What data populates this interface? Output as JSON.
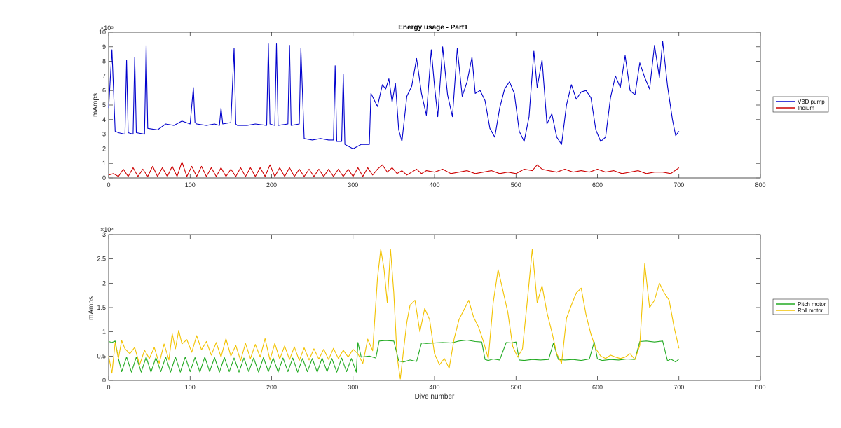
{
  "chart_data": [
    {
      "type": "line",
      "title": "Energy usage - Part1",
      "xlabel": "",
      "ylabel": "mAmps",
      "xlim": [
        0,
        800
      ],
      "ylim": [
        0,
        1000000
      ],
      "xticks": [
        "0",
        "100",
        "200",
        "300",
        "400",
        "500",
        "600",
        "700",
        "800"
      ],
      "yticks": [
        "0",
        "1",
        "2",
        "3",
        "4",
        "5",
        "6",
        "7",
        "8",
        "9",
        "10"
      ],
      "exponent_label": "×10⁵",
      "legend_position": "right",
      "grid": false,
      "series": [
        {
          "name": "VBD pump",
          "color": "#0000cc",
          "x": [
            0,
            4,
            8,
            12,
            20,
            22,
            24,
            30,
            32,
            34,
            44,
            46,
            48,
            60,
            70,
            80,
            90,
            100,
            104,
            106,
            108,
            120,
            130,
            136,
            138,
            140,
            150,
            154,
            156,
            158,
            170,
            180,
            194,
            196,
            198,
            204,
            206,
            208,
            220,
            222,
            224,
            234,
            236,
            240,
            250,
            260,
            270,
            276,
            278,
            280,
            286,
            288,
            290,
            300,
            310,
            320,
            322,
            330,
            336,
            340,
            344,
            348,
            352,
            356,
            360,
            366,
            372,
            378,
            384,
            390,
            396,
            400,
            404,
            410,
            416,
            422,
            428,
            434,
            440,
            446,
            450,
            456,
            462,
            468,
            474,
            480,
            486,
            492,
            498,
            504,
            510,
            516,
            522,
            526,
            532,
            538,
            544,
            550,
            556,
            562,
            568,
            574,
            580,
            586,
            592,
            598,
            604,
            610,
            616,
            622,
            628,
            634,
            640,
            646,
            652,
            658,
            664,
            670,
            676,
            680,
            686,
            692,
            696,
            700
          ],
          "y": [
            480000,
            880000,
            320000,
            310000,
            300000,
            810000,
            310000,
            300000,
            830000,
            310000,
            300000,
            910000,
            340000,
            330000,
            370000,
            360000,
            390000,
            370000,
            620000,
            380000,
            370000,
            360000,
            370000,
            360000,
            480000,
            370000,
            380000,
            890000,
            370000,
            360000,
            360000,
            370000,
            360000,
            920000,
            370000,
            360000,
            920000,
            360000,
            370000,
            910000,
            360000,
            370000,
            890000,
            270000,
            260000,
            270000,
            260000,
            260000,
            770000,
            250000,
            250000,
            710000,
            230000,
            200000,
            230000,
            230000,
            580000,
            490000,
            640000,
            610000,
            680000,
            520000,
            650000,
            330000,
            250000,
            560000,
            630000,
            820000,
            580000,
            430000,
            880000,
            630000,
            420000,
            900000,
            570000,
            420000,
            890000,
            560000,
            660000,
            830000,
            580000,
            600000,
            530000,
            340000,
            280000,
            480000,
            610000,
            660000,
            580000,
            320000,
            250000,
            420000,
            870000,
            620000,
            810000,
            370000,
            440000,
            280000,
            230000,
            500000,
            640000,
            540000,
            590000,
            600000,
            550000,
            330000,
            250000,
            280000,
            550000,
            700000,
            620000,
            840000,
            600000,
            570000,
            790000,
            690000,
            610000,
            910000,
            690000,
            940000,
            630000,
            400000,
            290000,
            320000
          ]
        },
        {
          "name": "Iridium",
          "color": "#cc0000",
          "x": [
            0,
            6,
            12,
            18,
            24,
            30,
            36,
            42,
            48,
            54,
            60,
            66,
            72,
            78,
            84,
            90,
            96,
            102,
            108,
            114,
            120,
            126,
            132,
            138,
            144,
            150,
            156,
            162,
            168,
            174,
            180,
            186,
            192,
            198,
            204,
            210,
            216,
            222,
            228,
            234,
            240,
            246,
            252,
            258,
            264,
            270,
            276,
            282,
            288,
            294,
            300,
            306,
            312,
            318,
            324,
            330,
            336,
            342,
            348,
            354,
            360,
            366,
            372,
            378,
            384,
            390,
            400,
            410,
            420,
            430,
            440,
            450,
            460,
            470,
            480,
            490,
            500,
            510,
            520,
            526,
            532,
            540,
            550,
            560,
            570,
            580,
            590,
            600,
            610,
            620,
            630,
            640,
            650,
            660,
            670,
            680,
            690,
            700
          ],
          "y": [
            20000,
            30000,
            10000,
            60000,
            10000,
            70000,
            10000,
            60000,
            10000,
            80000,
            10000,
            70000,
            10000,
            80000,
            10000,
            110000,
            10000,
            80000,
            10000,
            80000,
            10000,
            70000,
            10000,
            70000,
            10000,
            60000,
            10000,
            70000,
            10000,
            70000,
            10000,
            70000,
            10000,
            90000,
            10000,
            70000,
            10000,
            70000,
            10000,
            60000,
            10000,
            60000,
            10000,
            60000,
            10000,
            60000,
            10000,
            60000,
            10000,
            60000,
            10000,
            70000,
            10000,
            70000,
            20000,
            60000,
            90000,
            40000,
            70000,
            30000,
            50000,
            20000,
            40000,
            60000,
            30000,
            50000,
            40000,
            60000,
            30000,
            40000,
            50000,
            30000,
            40000,
            50000,
            30000,
            40000,
            30000,
            60000,
            50000,
            90000,
            60000,
            50000,
            40000,
            60000,
            40000,
            50000,
            40000,
            60000,
            40000,
            50000,
            30000,
            40000,
            50000,
            30000,
            40000,
            40000,
            30000,
            70000
          ]
        }
      ]
    },
    {
      "type": "line",
      "title": "",
      "xlabel": "Dive number",
      "ylabel": "mAmps",
      "xlim": [
        0,
        800
      ],
      "ylim": [
        0,
        30000
      ],
      "xticks": [
        "0",
        "100",
        "200",
        "300",
        "400",
        "500",
        "600",
        "700",
        "800"
      ],
      "yticks": [
        "0",
        "0.5",
        "1",
        "1.5",
        "2",
        "2.5",
        "3"
      ],
      "exponent_label": "×10⁴",
      "legend_position": "right",
      "grid": false,
      "series": [
        {
          "name": "Pitch motor",
          "color": "#22aa22",
          "x": [
            0,
            4,
            8,
            12,
            16,
            22,
            28,
            34,
            40,
            46,
            52,
            58,
            64,
            70,
            76,
            82,
            88,
            94,
            100,
            106,
            112,
            118,
            124,
            130,
            136,
            142,
            148,
            154,
            160,
            166,
            172,
            178,
            184,
            190,
            196,
            202,
            208,
            214,
            220,
            226,
            232,
            238,
            244,
            250,
            256,
            262,
            268,
            274,
            280,
            286,
            292,
            298,
            304,
            306,
            310,
            320,
            328,
            332,
            340,
            350,
            356,
            362,
            370,
            378,
            384,
            390,
            400,
            410,
            420,
            430,
            440,
            450,
            458,
            462,
            466,
            472,
            480,
            488,
            494,
            500,
            504,
            510,
            520,
            530,
            540,
            546,
            552,
            560,
            570,
            580,
            590,
            596,
            600,
            606,
            616,
            626,
            636,
            646,
            652,
            660,
            670,
            680,
            686,
            690,
            696,
            700
          ],
          "y": [
            8000,
            7800,
            8100,
            4500,
            1800,
            4800,
            1700,
            4800,
            1700,
            4800,
            1700,
            4700,
            1800,
            4800,
            1700,
            4800,
            1700,
            4800,
            1800,
            4700,
            1700,
            4800,
            1800,
            4700,
            1700,
            4700,
            1800,
            4600,
            1700,
            4600,
            1800,
            4600,
            1700,
            4700,
            1800,
            4600,
            1700,
            4600,
            1800,
            4600,
            1700,
            4500,
            1800,
            4500,
            1700,
            4600,
            1800,
            4500,
            1700,
            4600,
            1800,
            4500,
            1700,
            7800,
            4800,
            5000,
            4600,
            8100,
            8200,
            8100,
            4000,
            3800,
            4200,
            3900,
            7700,
            7600,
            7700,
            7800,
            7700,
            8100,
            8300,
            8000,
            7900,
            4300,
            4100,
            4400,
            4200,
            7800,
            7700,
            7900,
            4200,
            4100,
            4300,
            4200,
            4300,
            7700,
            4300,
            4200,
            4300,
            4100,
            4400,
            7900,
            4400,
            4100,
            4300,
            4200,
            4400,
            4300,
            8000,
            8100,
            7900,
            8100,
            4000,
            4400,
            3800,
            4400
          ]
        },
        {
          "name": "Roll motor",
          "color": "#f2c200",
          "x": [
            0,
            4,
            8,
            12,
            16,
            20,
            26,
            32,
            38,
            44,
            50,
            56,
            62,
            68,
            74,
            78,
            82,
            86,
            90,
            96,
            102,
            108,
            114,
            120,
            126,
            132,
            138,
            144,
            150,
            156,
            162,
            168,
            174,
            180,
            186,
            192,
            198,
            204,
            210,
            216,
            222,
            228,
            234,
            240,
            246,
            252,
            258,
            264,
            270,
            276,
            282,
            288,
            294,
            300,
            306,
            312,
            318,
            324,
            330,
            334,
            338,
            342,
            346,
            350,
            354,
            358,
            362,
            366,
            370,
            376,
            382,
            388,
            394,
            400,
            406,
            412,
            418,
            424,
            430,
            436,
            442,
            448,
            454,
            460,
            466,
            472,
            478,
            484,
            490,
            496,
            502,
            508,
            514,
            520,
            526,
            532,
            538,
            544,
            550,
            556,
            562,
            568,
            574,
            580,
            586,
            592,
            598,
            604,
            610,
            616,
            622,
            628,
            634,
            640,
            646,
            652,
            658,
            664,
            670,
            676,
            682,
            688,
            694,
            700
          ],
          "y": [
            5000,
            1500,
            7800,
            4500,
            8200,
            6500,
            5500,
            6800,
            3200,
            6200,
            4500,
            6800,
            3500,
            7500,
            4200,
            9600,
            6500,
            10300,
            7500,
            8400,
            5800,
            9200,
            6300,
            8000,
            5200,
            7800,
            4800,
            8600,
            5000,
            7200,
            4100,
            7600,
            4500,
            7400,
            4800,
            8600,
            4200,
            7600,
            4400,
            7100,
            4300,
            6900,
            4100,
            6700,
            4200,
            6500,
            4400,
            6400,
            4300,
            6600,
            4500,
            6200,
            4800,
            6400,
            5500,
            3500,
            8500,
            6100,
            21000,
            27000,
            23000,
            16000,
            27000,
            18000,
            5000,
            300,
            6200,
            12000,
            15500,
            16500,
            10000,
            14800,
            12500,
            5500,
            3200,
            4500,
            2500,
            8500,
            12500,
            14500,
            16500,
            13000,
            11000,
            8000,
            4500,
            16000,
            22800,
            18500,
            14000,
            7000,
            4800,
            6500,
            16500,
            27000,
            16000,
            19500,
            14000,
            10000,
            5500,
            3500,
            12800,
            15500,
            18000,
            19000,
            13500,
            9500,
            6500,
            5000,
            4500,
            5200,
            4800,
            4500,
            4800,
            5500,
            4300,
            7200,
            24000,
            15000,
            16500,
            20000,
            18000,
            16500,
            11000,
            6600
          ]
        }
      ]
    }
  ]
}
